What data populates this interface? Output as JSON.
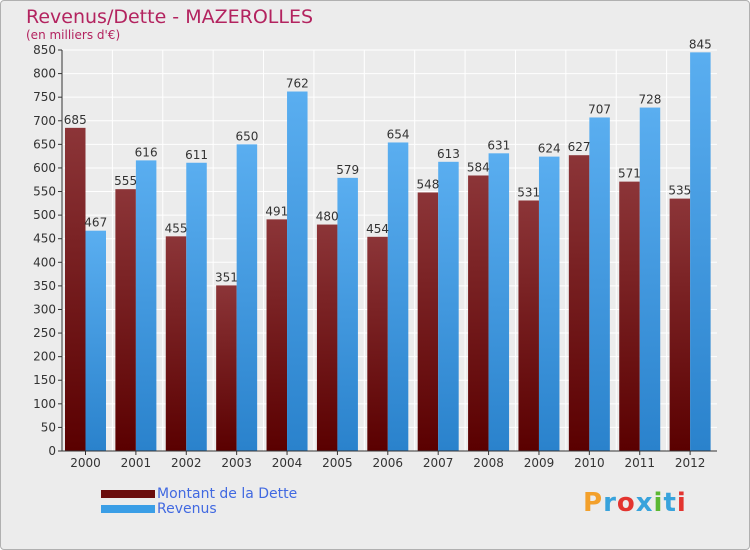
{
  "title": "Revenus/Dette - MAZEROLLES",
  "subtitle": "(en milliers d'€)",
  "logo_text": "Proxiti",
  "logo_colors": [
    "#f3a02b",
    "#38a3dc",
    "#e3342f",
    "#38a3dc",
    "#5bb832",
    "#38a3dc",
    "#e3342f"
  ],
  "colors": {
    "dette_light": "#8c3538",
    "dette_dark": "#5a0000",
    "revenus_light": "#5aaef0",
    "revenus_dark": "#2a82cc",
    "grid": "#ffffff",
    "axis": "#333333",
    "title": "#b3235f",
    "legend_text": "#4169e1"
  },
  "legend": [
    {
      "label": "Montant de la Dette",
      "color": "#6b0d0d"
    },
    {
      "label": "Revenus",
      "color": "#3a9ee6"
    }
  ],
  "chart_data": {
    "type": "bar",
    "title": "Revenus/Dette - MAZEROLLES",
    "subtitle": "(en milliers d'€)",
    "categories": [
      "2000",
      "2001",
      "2002",
      "2003",
      "2004",
      "2005",
      "2006",
      "2007",
      "2008",
      "2009",
      "2010",
      "2011",
      "2012"
    ],
    "series": [
      {
        "name": "Montant de la Dette",
        "values": [
          685,
          555,
          455,
          351,
          491,
          480,
          454,
          548,
          584,
          531,
          627,
          571,
          535
        ]
      },
      {
        "name": "Revenus",
        "values": [
          467,
          616,
          611,
          650,
          762,
          579,
          654,
          613,
          631,
          624,
          707,
          728,
          845
        ]
      }
    ],
    "ylim": [
      0,
      850
    ],
    "ytick_step": 50,
    "grid": true,
    "legend_position": "bottom-left"
  }
}
